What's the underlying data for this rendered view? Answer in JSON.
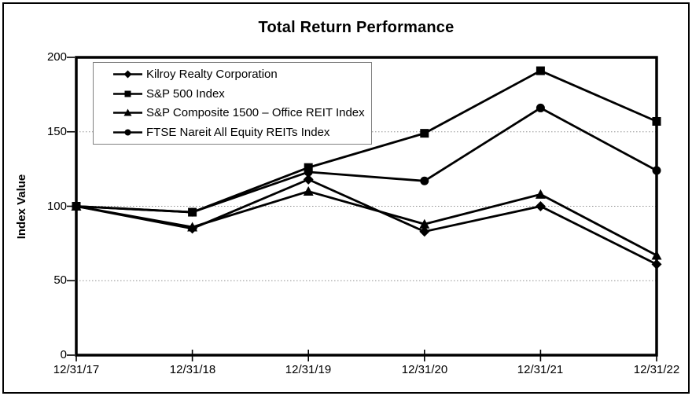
{
  "chart_data": {
    "type": "line",
    "title": "Total Return Performance",
    "xlabel": "",
    "ylabel": "Index Value",
    "categories": [
      "12/31/17",
      "12/31/18",
      "12/31/19",
      "12/31/20",
      "12/31/21",
      "12/31/22"
    ],
    "yticks": [
      200,
      150,
      100,
      50,
      0
    ],
    "ylim": [
      0,
      200
    ],
    "grid": "horizontal-dotted-at-50-100-150",
    "legend_position": "top-left-inside",
    "line_color": "#000000",
    "marker_color": "#000000",
    "gridline_color": "#909090",
    "series": [
      {
        "name": "Kilroy Realty Corporation",
        "marker": "diamond",
        "values": [
          100,
          85,
          118,
          83,
          100,
          61
        ]
      },
      {
        "name": "S&P 500 Index",
        "marker": "square",
        "values": [
          100,
          96,
          126,
          149,
          191,
          157
        ]
      },
      {
        "name": "S&P Composite 1500 – Office REIT Index",
        "marker": "triangle",
        "values": [
          100,
          86,
          110,
          88,
          108,
          67
        ]
      },
      {
        "name": "FTSE Nareit All Equity REITs Index",
        "marker": "circle",
        "values": [
          100,
          96,
          123,
          117,
          166,
          124
        ]
      }
    ]
  }
}
